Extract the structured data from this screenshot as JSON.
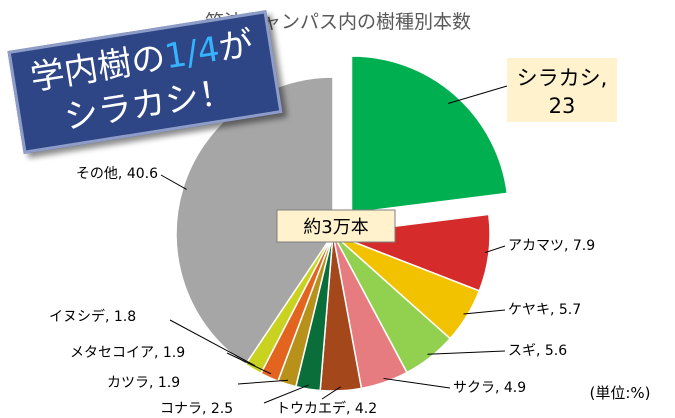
{
  "chart_data": {
    "type": "pie",
    "title": "筑波キャンパス内の樹種別本数",
    "unit_note": "(単位:%)",
    "total_note": "約3万本",
    "slices": [
      {
        "label": "シラカシ",
        "value": 23,
        "color": "#00b050",
        "exploded": true
      },
      {
        "label": "アカマツ",
        "value": 7.9,
        "color": "#d62b2b"
      },
      {
        "label": "ケヤキ",
        "value": 5.7,
        "color": "#f2c200"
      },
      {
        "label": "スギ",
        "value": 5.6,
        "color": "#92d050"
      },
      {
        "label": "サクラ",
        "value": 4.9,
        "color": "#e67c80"
      },
      {
        "label": "トウカエデ",
        "value": 4.2,
        "color": "#a4471b"
      },
      {
        "label": "コナラ",
        "value": 2.5,
        "color": "#0a6e3a"
      },
      {
        "label": "カツラ",
        "value": 1.9,
        "color": "#b8911a"
      },
      {
        "label": "メタセコイア",
        "value": 1.9,
        "color": "#e3641e"
      },
      {
        "label": "イヌシデ",
        "value": 1.8,
        "color": "#c9d21e"
      },
      {
        "label": "その他",
        "value": 40.6,
        "color": "#a6a6a6"
      }
    ]
  },
  "callout": {
    "line1": "学内樹の",
    "highlight": "1/4",
    "line1_end": "が",
    "line2": "シラカシ！"
  }
}
